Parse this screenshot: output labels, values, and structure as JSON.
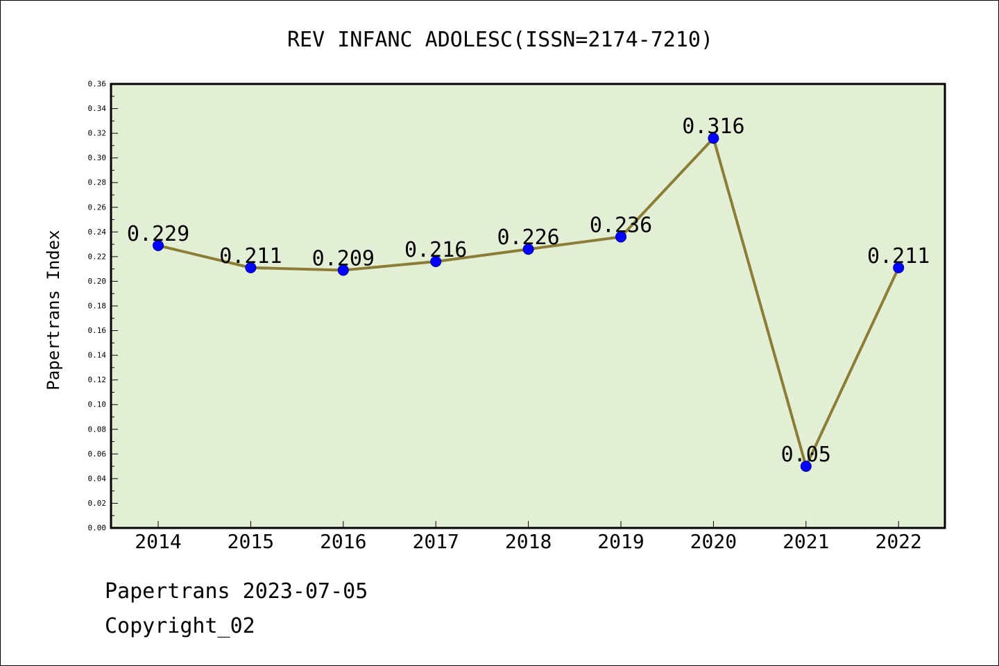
{
  "chart_data": {
    "type": "line",
    "title": "REV INFANC ADOLESC(ISSN=2174-7210)",
    "xlabel": "",
    "ylabel": "Papertrans Index",
    "categories": [
      "2014",
      "2015",
      "2016",
      "2017",
      "2018",
      "2019",
      "2020",
      "2021",
      "2022"
    ],
    "series": [
      {
        "values": [
          0.229,
          0.211,
          0.209,
          0.216,
          0.226,
          0.236,
          0.316,
          0.05,
          0.211
        ],
        "labels": [
          "0.229",
          "0.211",
          "0.209",
          "0.216",
          "0.226",
          "0.236",
          "0.316",
          "0.05",
          "0.211"
        ]
      }
    ],
    "ylim": [
      0,
      0.36
    ],
    "yticks": [
      "0.00",
      "0.02",
      "0.04",
      "0.06",
      "0.08",
      "0.10",
      "0.12",
      "0.14",
      "0.16",
      "0.18",
      "0.20",
      "0.22",
      "0.24",
      "0.26",
      "0.28",
      "0.30",
      "0.32",
      "0.34",
      "0.36"
    ],
    "grid": false,
    "legend": "none",
    "colors": {
      "plot_background": "#e2efd5",
      "line": "#8b7d35",
      "marker": "#0000ff",
      "marker_edge": "#00008b"
    }
  },
  "footer": {
    "date_line": "Papertrans 2023-07-05",
    "copyright_line": "Copyright_02"
  }
}
